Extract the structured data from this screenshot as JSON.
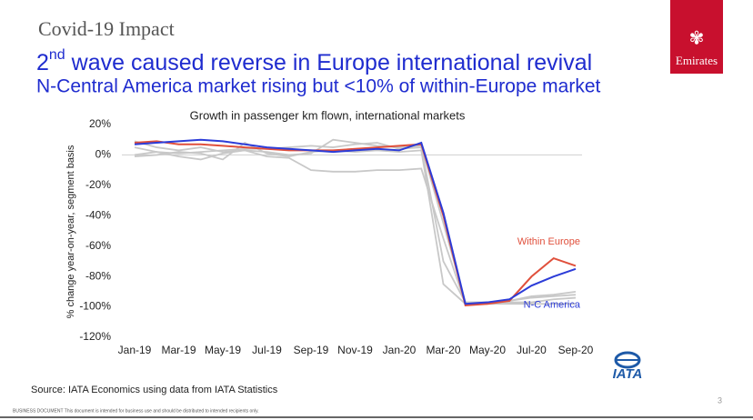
{
  "header": {
    "section": "Covid-19 Impact",
    "title_number": "2",
    "title_superscript": "nd",
    "title_rest": " wave caused reverse in Europe international revival",
    "subtitle": "N-Central America market rising but <10% of within-Europe market",
    "brand": "Emirates"
  },
  "chart_data": {
    "type": "line",
    "title": "Growth in passenger km flown, international markets",
    "y_label": "% change year-on-year, segment basis",
    "categories": [
      "Jan-19",
      null,
      "Mar-19",
      null,
      "May-19",
      null,
      "Jul-19",
      null,
      "Sep-19",
      null,
      "Nov-19",
      null,
      "Jan-20",
      null,
      "Mar-20",
      null,
      "May-20",
      null,
      "Jul-20",
      null,
      "Sep-20"
    ],
    "ylim": [
      -120,
      20
    ],
    "yticks": [
      {
        "value": 20,
        "label": "20%"
      },
      {
        "value": 0,
        "label": "0%"
      },
      {
        "value": -20,
        "label": "-20%"
      },
      {
        "value": -40,
        "label": "-40%"
      },
      {
        "value": -60,
        "label": "-60%"
      },
      {
        "value": -80,
        "label": "-80%"
      },
      {
        "value": -100,
        "label": "-100%"
      },
      {
        "value": -120,
        "label": "-120%"
      }
    ],
    "zero_line": true,
    "series": [
      {
        "color": "#c8c8c8",
        "values": [
          9,
          5,
          3,
          5,
          2,
          3,
          2,
          0,
          1,
          10,
          8,
          6,
          5,
          6,
          -45,
          -97,
          -97,
          -96,
          -94,
          -93,
          -92
        ]
      },
      {
        "color": "#c8c8c8",
        "values": [
          0,
          2,
          -1,
          -3,
          1,
          3,
          -1,
          -2,
          -10,
          -11,
          -11,
          -10,
          -10,
          -9,
          -55,
          -98,
          -98,
          -98,
          -98,
          -98,
          -98
        ]
      },
      {
        "color": "#c8c8c8",
        "values": [
          5,
          2,
          1,
          2,
          3,
          4,
          4,
          5,
          6,
          5,
          7,
          8,
          4,
          5,
          -70,
          -97,
          -97,
          -96,
          -93,
          -92,
          -90
        ]
      },
      {
        "color": "#c8c8c8",
        "values": [
          -1,
          0,
          2,
          1,
          -3,
          8,
          1,
          -1,
          2,
          3,
          2,
          3,
          2,
          3,
          -85,
          -98,
          -98,
          -97,
          -97,
          -95,
          -94
        ]
      },
      {
        "name": "Within Europe",
        "color": "#e0503c",
        "values": [
          8,
          9,
          7,
          7,
          6,
          5,
          4,
          3,
          3,
          3,
          4,
          5,
          6,
          7,
          -40,
          -99,
          -98,
          -96,
          -80,
          -68,
          -73
        ]
      },
      {
        "name": "N-C America",
        "color": "#2c3cd8",
        "values": [
          7,
          8,
          9,
          10,
          9,
          7,
          5,
          4,
          3,
          2,
          3,
          4,
          3,
          8,
          -38,
          -98,
          -97,
          -95,
          -86,
          -80,
          -75
        ]
      }
    ]
  },
  "footer": {
    "source": "Source: IATA Economics using data from IATA Statistics",
    "logo": "IATA",
    "page": "3",
    "notice": "BUSINESS DOCUMENT  This document is intended for business use and should be distributed to intended recipients only."
  }
}
